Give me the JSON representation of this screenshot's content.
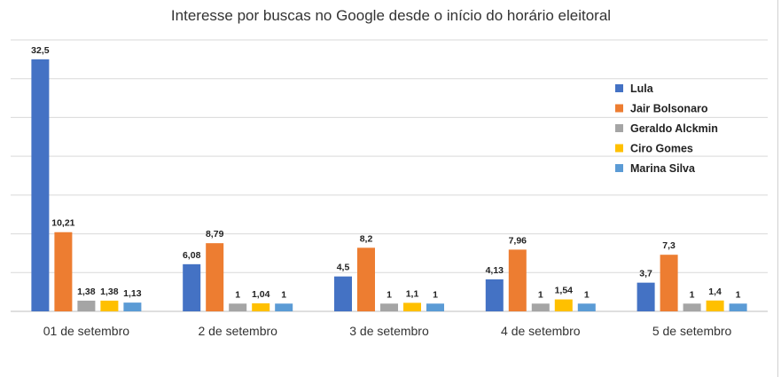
{
  "chart_data": {
    "type": "bar",
    "title": "Interesse por buscas no Google desde o início do horário eleitoral",
    "xlabel": "",
    "ylabel": "",
    "ylim": [
      0,
      35
    ],
    "grid": true,
    "legend_position": "right",
    "categories": [
      "01 de setembro",
      "2 de setembro",
      "3 de setembro",
      "4 de setembro",
      "5 de setembro"
    ],
    "series": [
      {
        "name": "Lula",
        "color": "#4472c4",
        "values": [
          32.5,
          6.08,
          4.5,
          4.13,
          3.7
        ],
        "labels": [
          "32,5",
          "6,08",
          "4,5",
          "4,13",
          "3,7"
        ]
      },
      {
        "name": "Jair Bolsonaro",
        "color": "#ed7d31",
        "values": [
          10.21,
          8.79,
          8.2,
          7.96,
          7.3
        ],
        "labels": [
          "10,21",
          "8,79",
          "8,2",
          "7,96",
          "7,3"
        ]
      },
      {
        "name": "Geraldo Alckmin",
        "color": "#a5a5a5",
        "values": [
          1.38,
          1,
          1,
          1,
          1
        ],
        "labels": [
          "1,38",
          "1",
          "1",
          "1",
          "1"
        ]
      },
      {
        "name": "Ciro Gomes",
        "color": "#ffc000",
        "values": [
          1.38,
          1.04,
          1.1,
          1.54,
          1.4
        ],
        "labels": [
          "1,38",
          "1,04",
          "1,1",
          "1,54",
          "1,4"
        ]
      },
      {
        "name": "Marina Silva",
        "color": "#5b9bd5",
        "values": [
          1.13,
          1,
          1,
          1,
          1
        ],
        "labels": [
          "1,13",
          "1",
          "1",
          "1",
          "1"
        ]
      }
    ]
  }
}
